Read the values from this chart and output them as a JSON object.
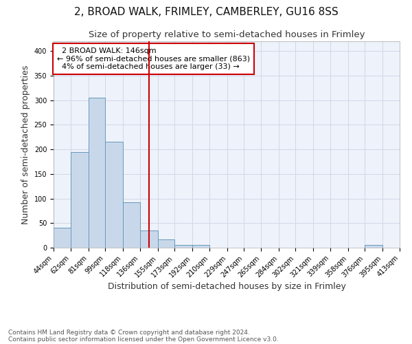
{
  "title": "2, BROAD WALK, FRIMLEY, CAMBERLEY, GU16 8SS",
  "subtitle": "Size of property relative to semi-detached houses in Frimley",
  "xlabel": "Distribution of semi-detached houses by size in Frimley",
  "ylabel": "Number of semi-detached properties",
  "footnote1": "Contains HM Land Registry data © Crown copyright and database right 2024.",
  "footnote2": "Contains public sector information licensed under the Open Government Licence v3.0.",
  "bin_labels": [
    "44sqm",
    "62sqm",
    "81sqm",
    "99sqm",
    "118sqm",
    "136sqm",
    "155sqm",
    "173sqm",
    "192sqm",
    "210sqm",
    "229sqm",
    "247sqm",
    "265sqm",
    "284sqm",
    "302sqm",
    "321sqm",
    "339sqm",
    "358sqm",
    "376sqm",
    "395sqm",
    "413sqm"
  ],
  "bar_values": [
    40,
    195,
    305,
    215,
    93,
    35,
    17,
    5,
    5,
    0,
    0,
    0,
    0,
    0,
    0,
    0,
    0,
    0,
    5,
    0
  ],
  "bin_edges": [
    44,
    62,
    81,
    99,
    118,
    136,
    155,
    173,
    192,
    210,
    229,
    247,
    265,
    284,
    302,
    321,
    339,
    358,
    376,
    395,
    413
  ],
  "property_size": 146,
  "property_label": "2 BROAD WALK: 146sqm",
  "pct_smaller": 96,
  "n_smaller": 863,
  "pct_larger": 4,
  "n_larger": 33,
  "bar_color": "#c8d8ea",
  "bar_edge_color": "#6699bb",
  "vline_color": "#cc0000",
  "annotation_box_edge": "#cc0000",
  "grid_color": "#d0d8e8",
  "bg_color": "#eef2fa",
  "ylim": [
    0,
    420
  ],
  "title_fontsize": 11,
  "subtitle_fontsize": 9.5,
  "axis_label_fontsize": 9,
  "tick_fontsize": 7,
  "annotation_fontsize": 8,
  "footnote_fontsize": 6.5
}
